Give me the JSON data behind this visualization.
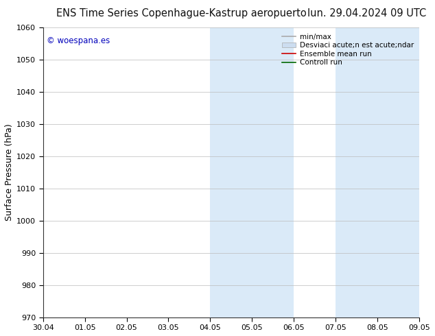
{
  "title_left": "ENS Time Series Copenhague-Kastrup aeropuerto",
  "title_right": "lun. 29.04.2024 09 UTC",
  "ylabel": "Surface Pressure (hPa)",
  "watermark": "© woespana.es",
  "watermark_color": "#0000bb",
  "xlim_start": 0,
  "xlim_end": 9,
  "ylim_bottom": 970,
  "ylim_top": 1060,
  "yticks": [
    970,
    980,
    990,
    1000,
    1010,
    1020,
    1030,
    1040,
    1050,
    1060
  ],
  "xtick_labels": [
    "30.04",
    "01.05",
    "02.05",
    "03.05",
    "04.05",
    "05.05",
    "06.05",
    "07.05",
    "08.05",
    "09.05"
  ],
  "xtick_positions": [
    0,
    1,
    2,
    3,
    4,
    5,
    6,
    7,
    8,
    9
  ],
  "shaded_regions": [
    {
      "xmin": 4.0,
      "xmax": 5.0,
      "color": "#daeaf8"
    },
    {
      "xmin": 5.0,
      "xmax": 6.0,
      "color": "#daeaf8"
    },
    {
      "xmin": 7.0,
      "xmax": 8.0,
      "color": "#daeaf8"
    },
    {
      "xmin": 8.0,
      "xmax": 9.0,
      "color": "#daeaf8"
    }
  ],
  "legend_label_minmax": "min/max",
  "legend_label_std": "Desviaci acute;n est acute;ndar",
  "legend_label_ensemble": "Ensemble mean run",
  "legend_label_control": "Controll run",
  "color_minmax": "#aaaaaa",
  "color_std": "#ccddf0",
  "color_ensemble": "#cc0000",
  "color_control": "#006600",
  "bg_color": "#ffffff",
  "grid_color": "#bbbbbb",
  "title_fontsize": 10.5,
  "tick_fontsize": 8,
  "ylabel_fontsize": 9,
  "legend_fontsize": 7.5
}
